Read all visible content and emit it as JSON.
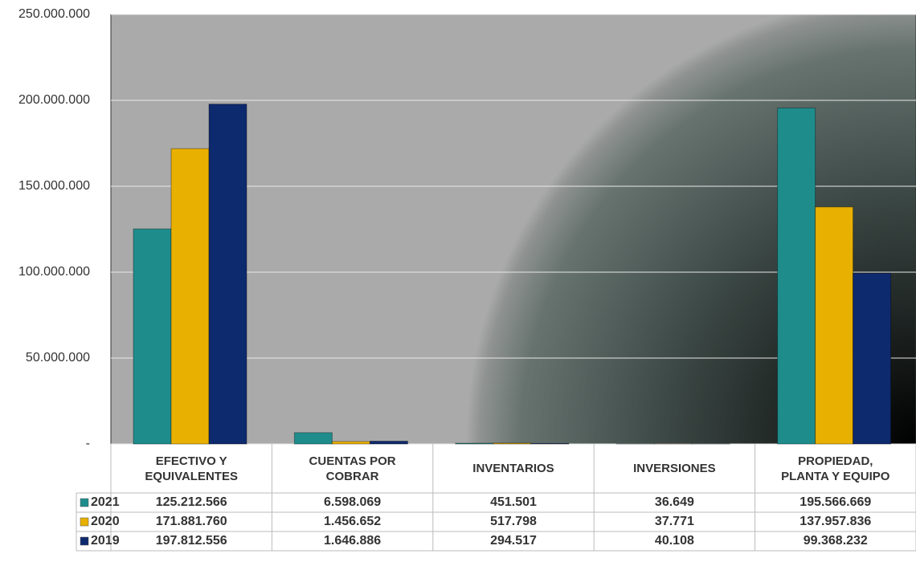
{
  "chart_data": {
    "type": "bar",
    "categories": [
      "EFECTIVO Y\nEQUIVALENTES",
      "CUENTAS POR\nCOBRAR",
      "INVENTARIOS",
      "INVERSIONES",
      "PROPIEDAD,\nPLANTA Y EQUIPO"
    ],
    "series": [
      {
        "name": "2021",
        "color": "#1f8c8c",
        "values": [
          125212566,
          6598069,
          451501,
          36649,
          195566669
        ],
        "value_labels": [
          "125.212.566",
          "6.598.069",
          "451.501",
          "36.649",
          "195.566.669"
        ]
      },
      {
        "name": "2020",
        "color": "#e8b000",
        "values": [
          171881760,
          1456652,
          517798,
          37771,
          137957836
        ],
        "value_labels": [
          "171.881.760",
          "1.456.652",
          "517.798",
          "37.771",
          "137.957.836"
        ]
      },
      {
        "name": "2019",
        "color": "#0e2a6e",
        "values": [
          197812556,
          1646886,
          294517,
          40108,
          99368232
        ],
        "value_labels": [
          "197.812.556",
          "1.646.886",
          "294.517",
          "40.108",
          "99.368.232"
        ]
      }
    ],
    "ylim": [
      0,
      250000000
    ],
    "yticks": [
      {
        "value": 0,
        "label": "-"
      },
      {
        "value": 50000000,
        "label": "50.000.000"
      },
      {
        "value": 100000000,
        "label": "100.000.000"
      },
      {
        "value": 150000000,
        "label": "150.000.000"
      },
      {
        "value": 200000000,
        "label": "200.000.000"
      },
      {
        "value": 250000000,
        "label": "250.000.000"
      }
    ],
    "grid": true
  }
}
